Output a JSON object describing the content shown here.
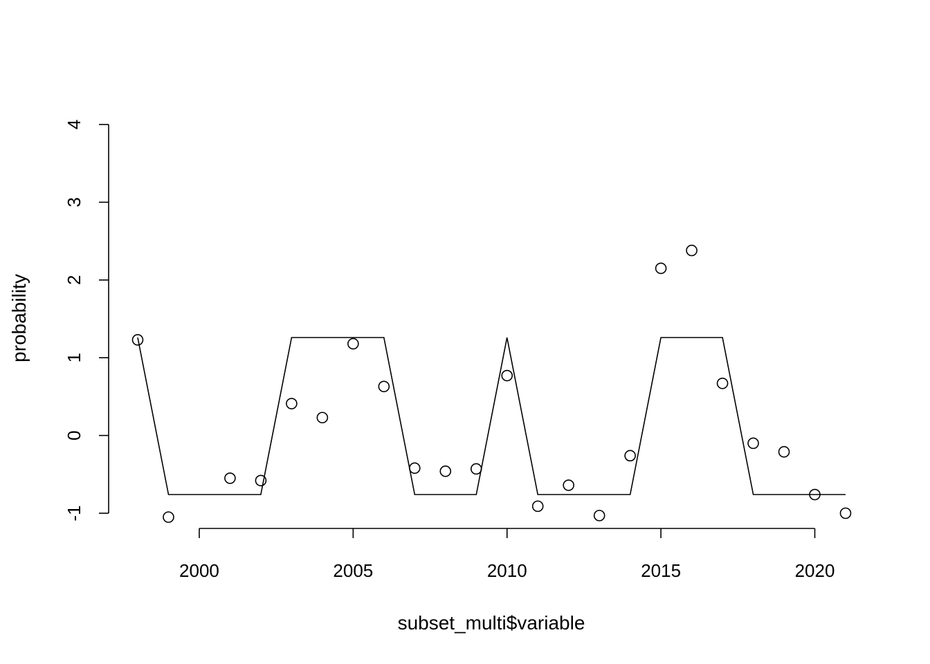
{
  "chart_data": {
    "type": "scatter",
    "title": "",
    "xlabel": "subset_multi$variable",
    "ylabel": "probability",
    "xlim": [
      1998,
      2021
    ],
    "ylim": [
      -1,
      4
    ],
    "x_ticks": [
      2000,
      2005,
      2010,
      2015,
      2020
    ],
    "y_ticks": [
      -1,
      0,
      1,
      2,
      3,
      4
    ],
    "x_axis_range": [
      2000,
      2020
    ],
    "y_axis_range": [
      -1,
      4
    ],
    "grid": false,
    "legend": "none",
    "series": [
      {
        "kind": "points",
        "x": [
          1998,
          1999,
          2001,
          2002,
          2003,
          2004,
          2005,
          2006,
          2007,
          2008,
          2009,
          2010,
          2011,
          2012,
          2013,
          2014,
          2015,
          2016,
          2017,
          2018,
          2019,
          2020,
          2021
        ],
        "y": [
          1.23,
          -1.05,
          -0.55,
          -0.58,
          0.41,
          0.23,
          1.18,
          0.63,
          -0.42,
          -0.46,
          -0.43,
          0.77,
          -0.91,
          -0.64,
          -1.03,
          -0.26,
          2.15,
          2.38,
          0.67,
          -0.1,
          -0.21,
          -0.76,
          -1.0
        ]
      },
      {
        "kind": "line",
        "x": [
          1998,
          1999,
          2001,
          2002,
          2003,
          2004,
          2005,
          2006,
          2007,
          2008,
          2009,
          2010,
          2011,
          2012,
          2013,
          2014,
          2015,
          2016,
          2017,
          2018,
          2019,
          2020,
          2021
        ],
        "y": [
          1.26,
          -0.76,
          -0.76,
          -0.76,
          1.26,
          1.26,
          1.26,
          1.26,
          -0.76,
          -0.76,
          -0.76,
          1.26,
          -0.76,
          -0.76,
          -0.76,
          -0.76,
          1.26,
          1.26,
          1.26,
          -0.76,
          -0.76,
          -0.76,
          -0.76
        ]
      }
    ]
  }
}
